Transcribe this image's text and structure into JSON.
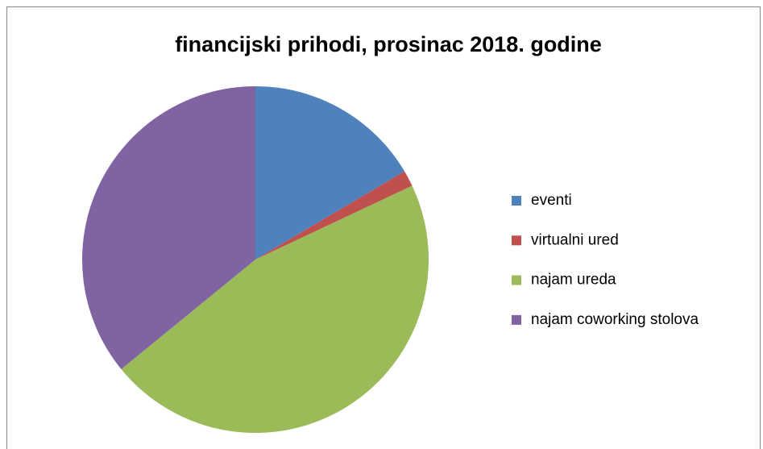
{
  "chart_data": {
    "type": "pie",
    "title": "financijski prihodi, prosinac 2018. godine",
    "categories": [
      "eventi",
      "virtualni ured",
      "najam ureda",
      "najam coworking stolova"
    ],
    "values": [
      16.5,
      1.5,
      46.1,
      35.9
    ],
    "colors": [
      "#4f81bd",
      "#c0504d",
      "#9bbb59",
      "#8064a2"
    ],
    "legend": "right"
  }
}
